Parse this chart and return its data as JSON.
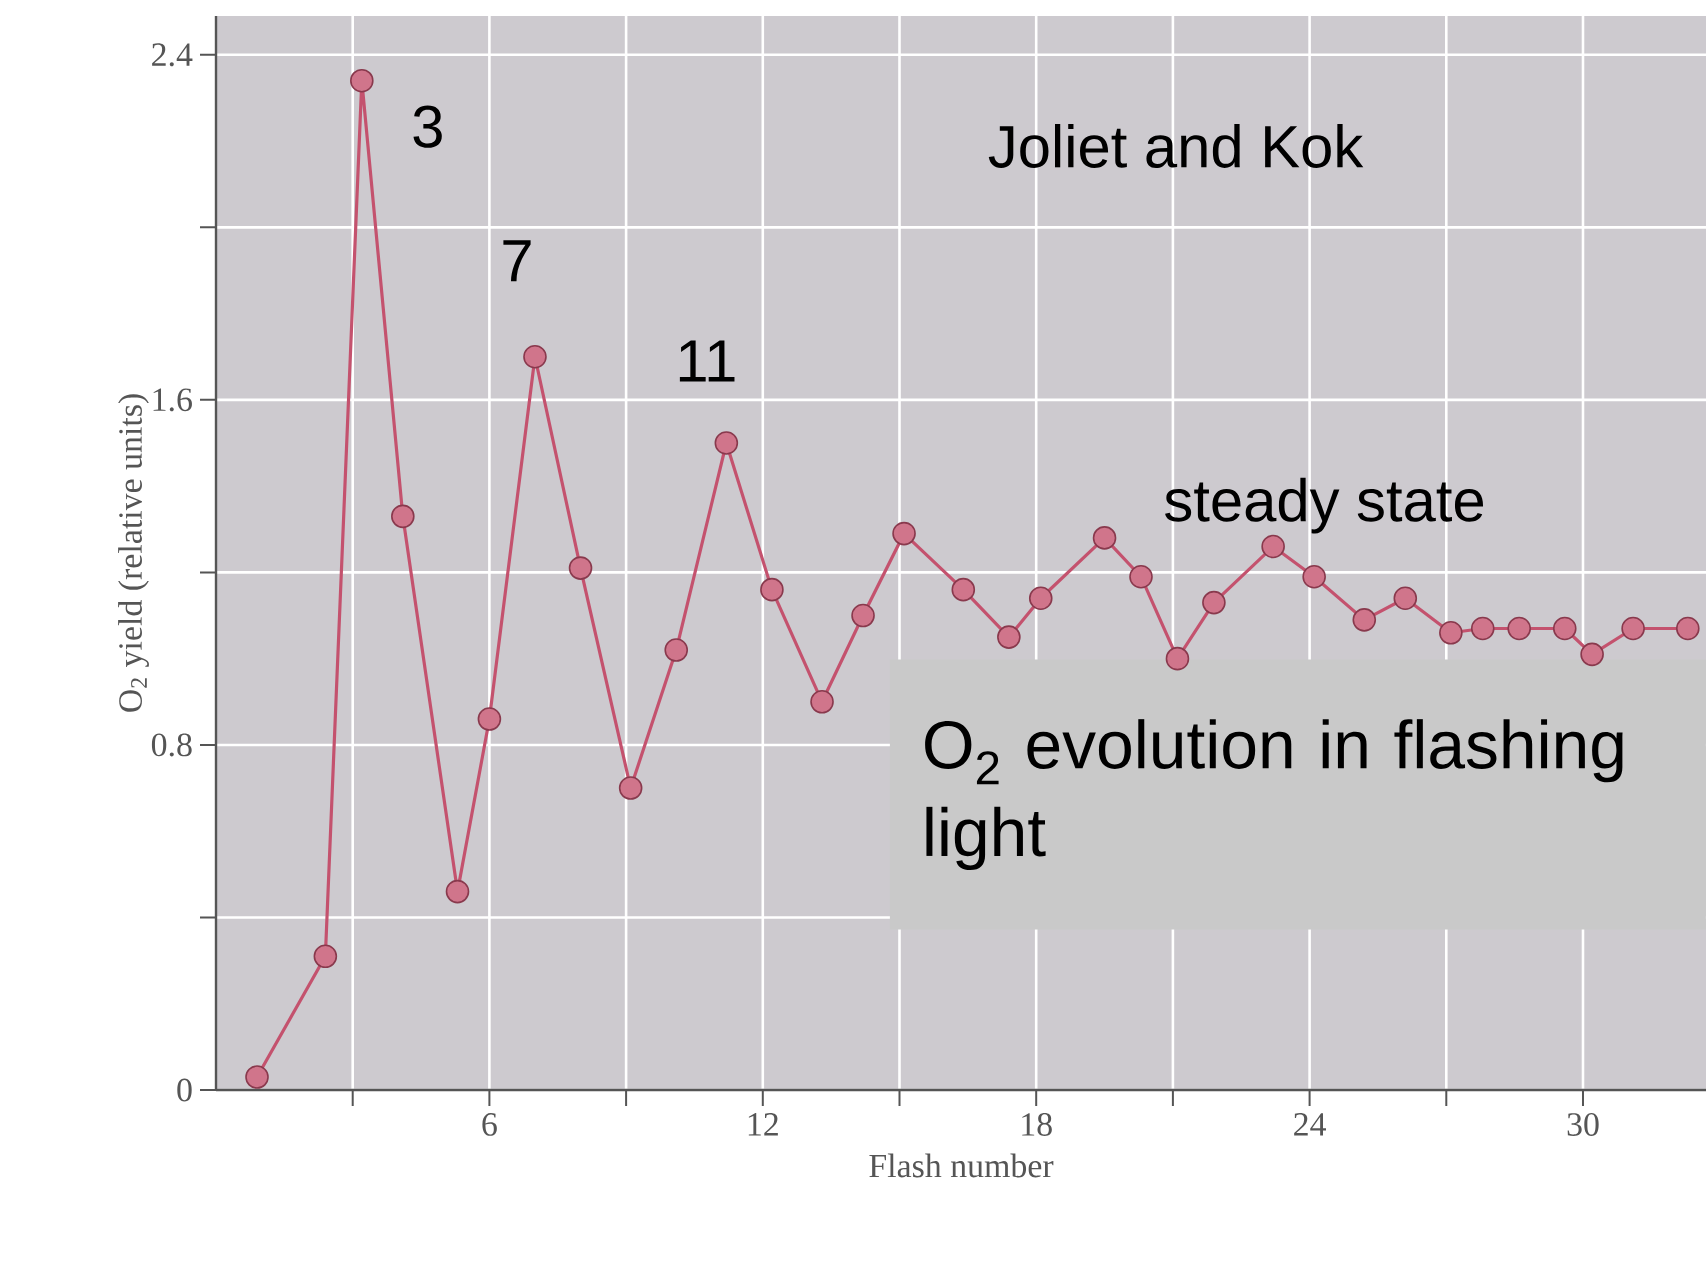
{
  "chart_data": {
    "type": "line",
    "xlabel": "Flash number",
    "ylabel": "O$_{2}$ yield (relative units)",
    "x": [
      0.9,
      2.4,
      3.2,
      4.1,
      5.3,
      6.0,
      7.0,
      8.0,
      9.1,
      10.1,
      11.2,
      12.2,
      13.3,
      14.2,
      15.1,
      16.4,
      17.4,
      18.1,
      19.5,
      20.3,
      21.1,
      21.9,
      23.2,
      24.1,
      25.2,
      26.1,
      27.1,
      27.8,
      28.6,
      29.6,
      30.2,
      31.1,
      32.3
    ],
    "values": [
      0.03,
      0.31,
      2.34,
      1.33,
      0.46,
      0.86,
      1.7,
      1.21,
      0.7,
      1.02,
      1.5,
      1.16,
      0.9,
      1.1,
      1.29,
      1.16,
      1.05,
      1.14,
      1.28,
      1.19,
      1.0,
      1.13,
      1.26,
      1.19,
      1.09,
      1.14,
      1.06,
      1.07,
      1.07,
      1.07,
      1.01,
      1.07,
      1.07
    ],
    "color": "#c4526e",
    "marker": "circle",
    "line_style": "solid",
    "grid": true,
    "xlim": [
      0,
      32.7
    ],
    "ylim": [
      0,
      2.49
    ],
    "xticks": [
      {
        "value": 3,
        "label": null
      },
      6,
      {
        "value": 9,
        "label": null
      },
      12,
      {
        "value": 15,
        "label": null
      },
      18,
      {
        "value": 21,
        "label": null
      },
      24,
      {
        "value": 27,
        "label": null
      },
      30
    ],
    "yticks": [
      0,
      {
        "value": 0.4,
        "label": null
      },
      0.8,
      {
        "value": 1.2,
        "label": null
      },
      1.6,
      {
        "value": 2.0,
        "label": null
      },
      2.4
    ],
    "annotations": [
      {
        "text": "3",
        "x": 3.2,
        "y": 2.34
      },
      {
        "text": "7",
        "x": 7.0,
        "y": 1.7
      },
      {
        "text": "11",
        "x": 11.2,
        "y": 1.5
      },
      "steady state",
      "Joliet and Kok",
      "O$_{2}$ evolution in flashing light"
    ]
  }
}
